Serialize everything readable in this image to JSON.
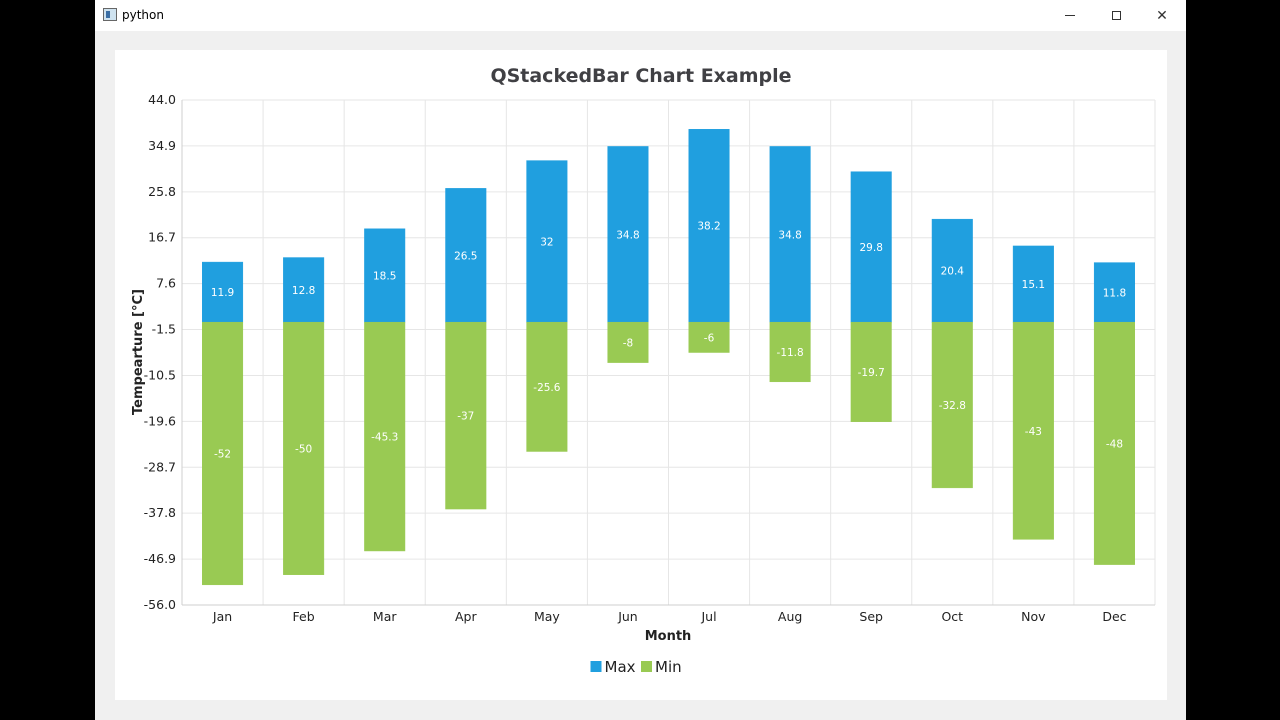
{
  "window": {
    "title": "python",
    "icon": "python-app-icon"
  },
  "chart_data": {
    "type": "bar",
    "stacked": true,
    "title": "QStackedBar Chart Example",
    "xlabel": "Month",
    "ylabel": "Tempearture [°C]",
    "categories": [
      "Jan",
      "Feb",
      "Mar",
      "Apr",
      "May",
      "Jun",
      "Jul",
      "Aug",
      "Sep",
      "Oct",
      "Nov",
      "Dec"
    ],
    "series": [
      {
        "name": "Max",
        "color": "#209fdf",
        "values": [
          11.9,
          12.8,
          18.5,
          26.5,
          32,
          34.8,
          38.2,
          34.8,
          29.8,
          20.4,
          15.1,
          11.8
        ],
        "labels": [
          "11.9",
          "12.8",
          "18.5",
          "26.5",
          "32",
          "34.8",
          "38.2",
          "34.8",
          "29.8",
          "20.4",
          "15.1",
          "11.8"
        ]
      },
      {
        "name": "Min",
        "color": "#99ca53",
        "values": [
          -52,
          -50,
          -45.3,
          -37,
          -25.6,
          -8,
          -6,
          -11.8,
          -19.7,
          -32.8,
          -43,
          -48
        ],
        "labels": [
          "-52",
          "-50",
          "-45.3",
          "-37",
          "-25.6",
          "-8",
          "-6",
          "-11.8",
          "-19.7",
          "-32.8",
          "-43",
          "-48"
        ]
      }
    ],
    "ylim": [
      -56.0,
      44.0
    ],
    "yticks": [
      "44.0",
      "34.9",
      "25.8",
      "16.7",
      "7.6",
      "-1.5",
      "-10.5",
      "-19.6",
      "-28.7",
      "-37.8",
      "-46.9",
      "-56.0"
    ],
    "grid": true,
    "legend": "bottom"
  }
}
